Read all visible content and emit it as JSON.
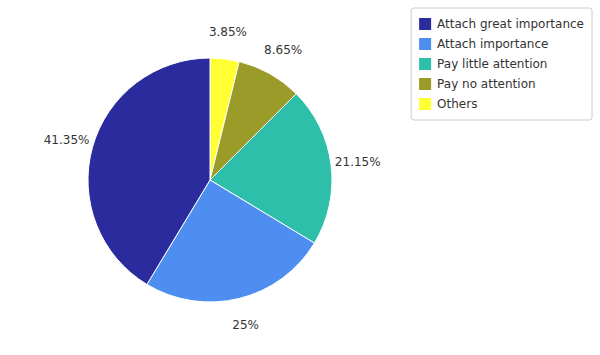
{
  "chart_data": {
    "type": "pie",
    "categories": [
      "Others",
      "Pay no attention",
      "Pay little attention",
      "Attach importance",
      "Attach great importance"
    ],
    "values": [
      3.85,
      8.65,
      21.15,
      25.0,
      41.35
    ],
    "value_labels": [
      "3.85%",
      "8.65%",
      "21.15%",
      "25%",
      "41.35%"
    ],
    "colors": [
      "#ffff33",
      "#9b9b2a",
      "#2dbfaa",
      "#4d8ef0",
      "#2b2b9e"
    ],
    "data_labels": true,
    "legend": "upper right"
  }
}
